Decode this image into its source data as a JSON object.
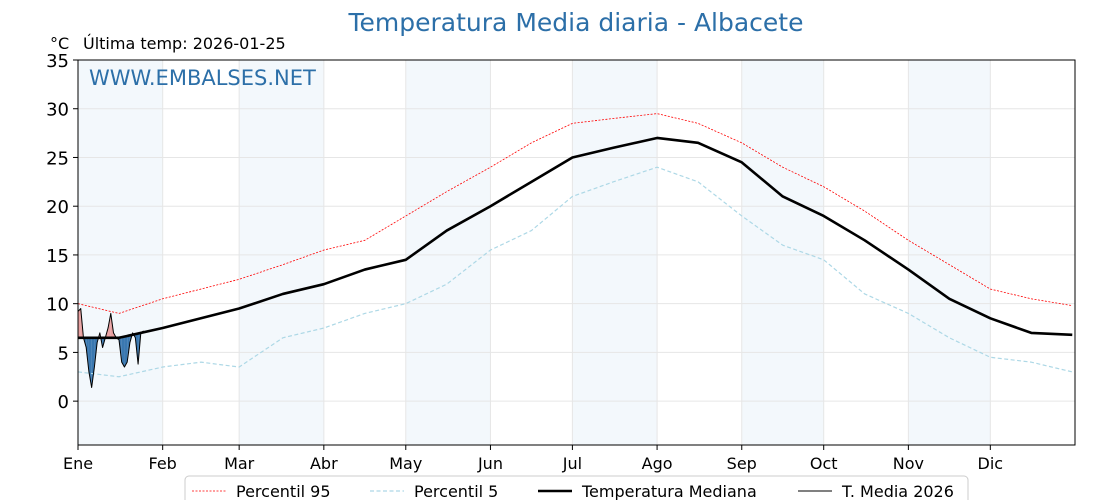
{
  "chart_data": {
    "type": "line",
    "title": "Temperatura Media diaria - Albacete",
    "unit_label": "°C",
    "subtitle": "Última temp: 2026-01-25",
    "watermark": "WWW.EMBALSES.NET",
    "ylim": [
      -4.5,
      35
    ],
    "xlim_days": [
      0,
      365
    ],
    "yticks": [
      0,
      5,
      10,
      15,
      20,
      25,
      30,
      35
    ],
    "months": [
      {
        "label": "Ene",
        "day": 0
      },
      {
        "label": "Feb",
        "day": 31
      },
      {
        "label": "Mar",
        "day": 59
      },
      {
        "label": "Abr",
        "day": 90
      },
      {
        "label": "May",
        "day": 120
      },
      {
        "label": "Jun",
        "day": 151
      },
      {
        "label": "Jul",
        "day": 181
      },
      {
        "label": "Ago",
        "day": 212
      },
      {
        "label": "Sep",
        "day": 243
      },
      {
        "label": "Oct",
        "day": 273
      },
      {
        "label": "Nov",
        "day": 304
      },
      {
        "label": "Dic",
        "day": 334
      }
    ],
    "grid": true,
    "legend_position": "bottom-center",
    "series": [
      {
        "name": "Percentil 95",
        "color": "#ff0000",
        "style": "dotted",
        "days": [
          0,
          15,
          31,
          45,
          59,
          75,
          90,
          105,
          120,
          135,
          151,
          166,
          181,
          196,
          212,
          227,
          243,
          258,
          273,
          288,
          304,
          319,
          334,
          349,
          364
        ],
        "values": [
          10,
          9,
          10.5,
          11.5,
          12.5,
          14,
          15.5,
          16.5,
          19,
          21.5,
          24,
          26.5,
          28.5,
          29,
          29.5,
          28.5,
          26.5,
          24,
          22,
          19.5,
          16.5,
          14,
          11.5,
          10.5,
          9.8
        ]
      },
      {
        "name": "Percentil 5",
        "color": "#add8e6",
        "style": "dashed",
        "days": [
          0,
          15,
          31,
          45,
          59,
          75,
          90,
          105,
          120,
          135,
          151,
          166,
          181,
          196,
          212,
          227,
          243,
          258,
          273,
          288,
          304,
          319,
          334,
          349,
          364
        ],
        "values": [
          3,
          2.5,
          3.5,
          4,
          3.5,
          6.5,
          7.5,
          9,
          10,
          12,
          15.5,
          17.5,
          21,
          22.5,
          24,
          22.5,
          19,
          16,
          14.5,
          11,
          9,
          6.5,
          4.5,
          4,
          3
        ]
      },
      {
        "name": "Temperatura Mediana",
        "color": "#000000",
        "style": "thick",
        "days": [
          0,
          15,
          31,
          45,
          59,
          75,
          90,
          105,
          120,
          135,
          151,
          166,
          181,
          196,
          212,
          227,
          243,
          258,
          273,
          288,
          304,
          319,
          334,
          349,
          364
        ],
        "values": [
          6.5,
          6.5,
          7.5,
          8.5,
          9.5,
          11,
          12,
          13.5,
          14.5,
          17.5,
          20,
          22.5,
          25,
          26,
          27,
          26.5,
          24.5,
          21,
          19,
          16.5,
          13.5,
          10.5,
          8.5,
          7,
          6.8
        ]
      },
      {
        "name": "T. Media 2026",
        "color": "#000000",
        "style": "thin",
        "days": [
          0,
          1,
          2,
          3,
          4,
          5,
          6,
          7,
          8,
          9,
          10,
          11,
          12,
          13,
          14,
          15,
          16,
          17,
          18,
          19,
          20,
          21,
          22,
          23,
          24
        ],
        "values": [
          9.2,
          9.5,
          6.5,
          5.5,
          3,
          1.4,
          3.5,
          6,
          7,
          5.5,
          6.5,
          7.5,
          9,
          7,
          6.5,
          6.3,
          4,
          3.5,
          4,
          6,
          7,
          6.5,
          3.8,
          7,
          7.2
        ]
      }
    ],
    "fill_colors": {
      "above": "#e8a0a0",
      "below": "#3a78b0"
    }
  }
}
